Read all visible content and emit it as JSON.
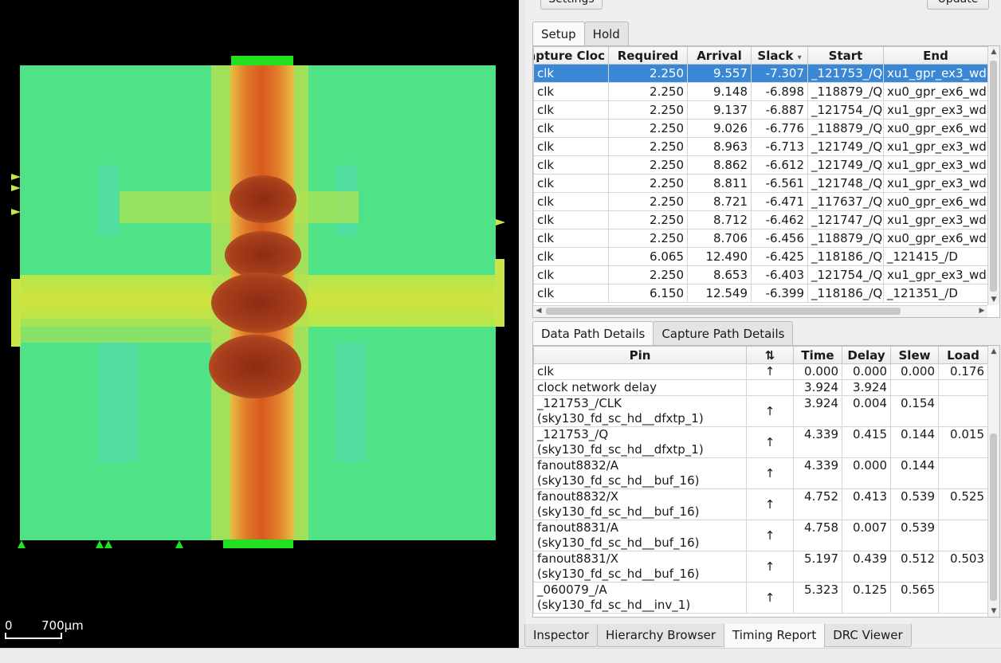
{
  "layout": {
    "scale_label_start": "0",
    "scale_label_end": "700µm"
  },
  "toolbar": {
    "settings_label": "Settings",
    "update_label": "Update"
  },
  "path_tabs": [
    {
      "label": "Setup",
      "active": true
    },
    {
      "label": "Hold",
      "active": false
    }
  ],
  "timing_table": {
    "columns": [
      "Capture Cloc",
      "Required",
      "Arrival",
      "Slack",
      "Start",
      "End"
    ],
    "sort_indicator": "▾",
    "rows": [
      [
        "clk",
        "2.250",
        "9.557",
        "-7.307",
        "_121753_/Q",
        "xu1_gpr_ex3_wd"
      ],
      [
        "clk",
        "2.250",
        "9.148",
        "-6.898",
        "_118879_/Q",
        "xu0_gpr_ex6_wd"
      ],
      [
        "clk",
        "2.250",
        "9.137",
        "-6.887",
        "_121754_/Q",
        "xu1_gpr_ex3_wd"
      ],
      [
        "clk",
        "2.250",
        "9.026",
        "-6.776",
        "_118879_/Q",
        "xu0_gpr_ex6_wd"
      ],
      [
        "clk",
        "2.250",
        "8.963",
        "-6.713",
        "_121749_/Q",
        "xu1_gpr_ex3_wd"
      ],
      [
        "clk",
        "2.250",
        "8.862",
        "-6.612",
        "_121749_/Q",
        "xu1_gpr_ex3_wd"
      ],
      [
        "clk",
        "2.250",
        "8.811",
        "-6.561",
        "_121748_/Q",
        "xu1_gpr_ex3_wd"
      ],
      [
        "clk",
        "2.250",
        "8.721",
        "-6.471",
        "_117637_/Q",
        "xu0_gpr_ex6_wd"
      ],
      [
        "clk",
        "2.250",
        "8.712",
        "-6.462",
        "_121747_/Q",
        "xu1_gpr_ex3_wd"
      ],
      [
        "clk",
        "2.250",
        "8.706",
        "-6.456",
        "_118879_/Q",
        "xu0_gpr_ex6_wd"
      ],
      [
        "clk",
        "6.065",
        "12.490",
        "-6.425",
        "_118186_/Q",
        "_121415_/D"
      ],
      [
        "clk",
        "2.250",
        "8.653",
        "-6.403",
        "_121754_/Q",
        "xu1_gpr_ex3_wd"
      ],
      [
        "clk",
        "6.150",
        "12.549",
        "-6.399",
        "_118186_/Q",
        "_121351_/D"
      ]
    ]
  },
  "detail_tabs": [
    {
      "label": "Data Path Details",
      "active": true
    },
    {
      "label": "Capture Path Details",
      "active": false
    }
  ],
  "path_table": {
    "columns": [
      "Pin",
      "⇅",
      "Time",
      "Delay",
      "Slew",
      "Load"
    ],
    "rows": [
      {
        "pin": "clk",
        "cell": "",
        "dir": "↑",
        "time": "0.000",
        "delay": "0.000",
        "slew": "0.000",
        "load": "0.176"
      },
      {
        "pin": "clock network delay",
        "cell": "",
        "dir": "",
        "time": "3.924",
        "delay": "3.924",
        "slew": "",
        "load": ""
      },
      {
        "pin": "_121753_/CLK",
        "cell": "(sky130_fd_sc_hd__dfxtp_1)",
        "dir": "↑",
        "time": "3.924",
        "delay": "0.004",
        "slew": "0.154",
        "load": ""
      },
      {
        "pin": "_121753_/Q",
        "cell": "(sky130_fd_sc_hd__dfxtp_1)",
        "dir": "↑",
        "time": "4.339",
        "delay": "0.415",
        "slew": "0.144",
        "load": "0.015"
      },
      {
        "pin": "fanout8832/A",
        "cell": "(sky130_fd_sc_hd__buf_16)",
        "dir": "↑",
        "time": "4.339",
        "delay": "0.000",
        "slew": "0.144",
        "load": ""
      },
      {
        "pin": "fanout8832/X",
        "cell": "(sky130_fd_sc_hd__buf_16)",
        "dir": "↑",
        "time": "4.752",
        "delay": "0.413",
        "slew": "0.539",
        "load": "0.525"
      },
      {
        "pin": "fanout8831/A",
        "cell": "(sky130_fd_sc_hd__buf_16)",
        "dir": "↑",
        "time": "4.758",
        "delay": "0.007",
        "slew": "0.539",
        "load": ""
      },
      {
        "pin": "fanout8831/X",
        "cell": "(sky130_fd_sc_hd__buf_16)",
        "dir": "↑",
        "time": "5.197",
        "delay": "0.439",
        "slew": "0.512",
        "load": "0.503"
      },
      {
        "pin": "_060079_/A",
        "cell": "(sky130_fd_sc_hd__inv_1)",
        "dir": "↑",
        "time": "5.323",
        "delay": "0.125",
        "slew": "0.565",
        "load": ""
      }
    ]
  },
  "bottom_tabs": [
    {
      "label": "Inspector",
      "active": false
    },
    {
      "label": "Hierarchy Browser",
      "active": false
    },
    {
      "label": "Timing Report",
      "active": true
    },
    {
      "label": "DRC Viewer",
      "active": false
    }
  ],
  "colors": {
    "selection": "#3a88d5",
    "heat_low": "#4ee08a",
    "heat_mid": "#d8e84a",
    "heat_high": "#a8301a"
  }
}
